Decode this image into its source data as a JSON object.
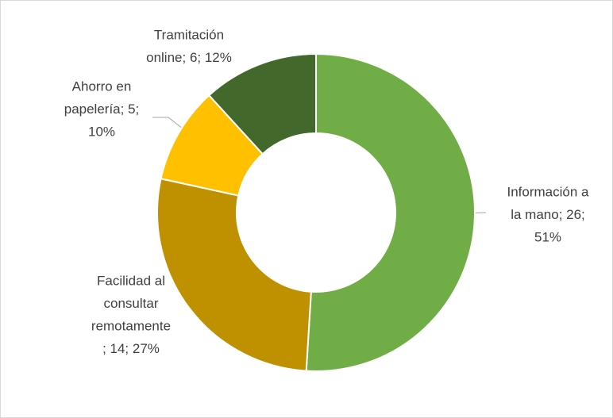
{
  "chart_data": {
    "type": "donut",
    "values": [
      26,
      14,
      5,
      6
    ],
    "value_labels": [
      [
        "Información a",
        "la mano; 26;",
        "51%"
      ],
      [
        "Facilidad al",
        "consultar",
        "remotamente",
        "; 14; 27%"
      ],
      [
        "Ahorro en",
        "papelería; 5;",
        "10%"
      ],
      [
        "Tramitación",
        "online; 6; 12%"
      ]
    ],
    "colors": [
      "#70ad47",
      "#bf9000",
      "#ffc000",
      "#43682b"
    ]
  }
}
